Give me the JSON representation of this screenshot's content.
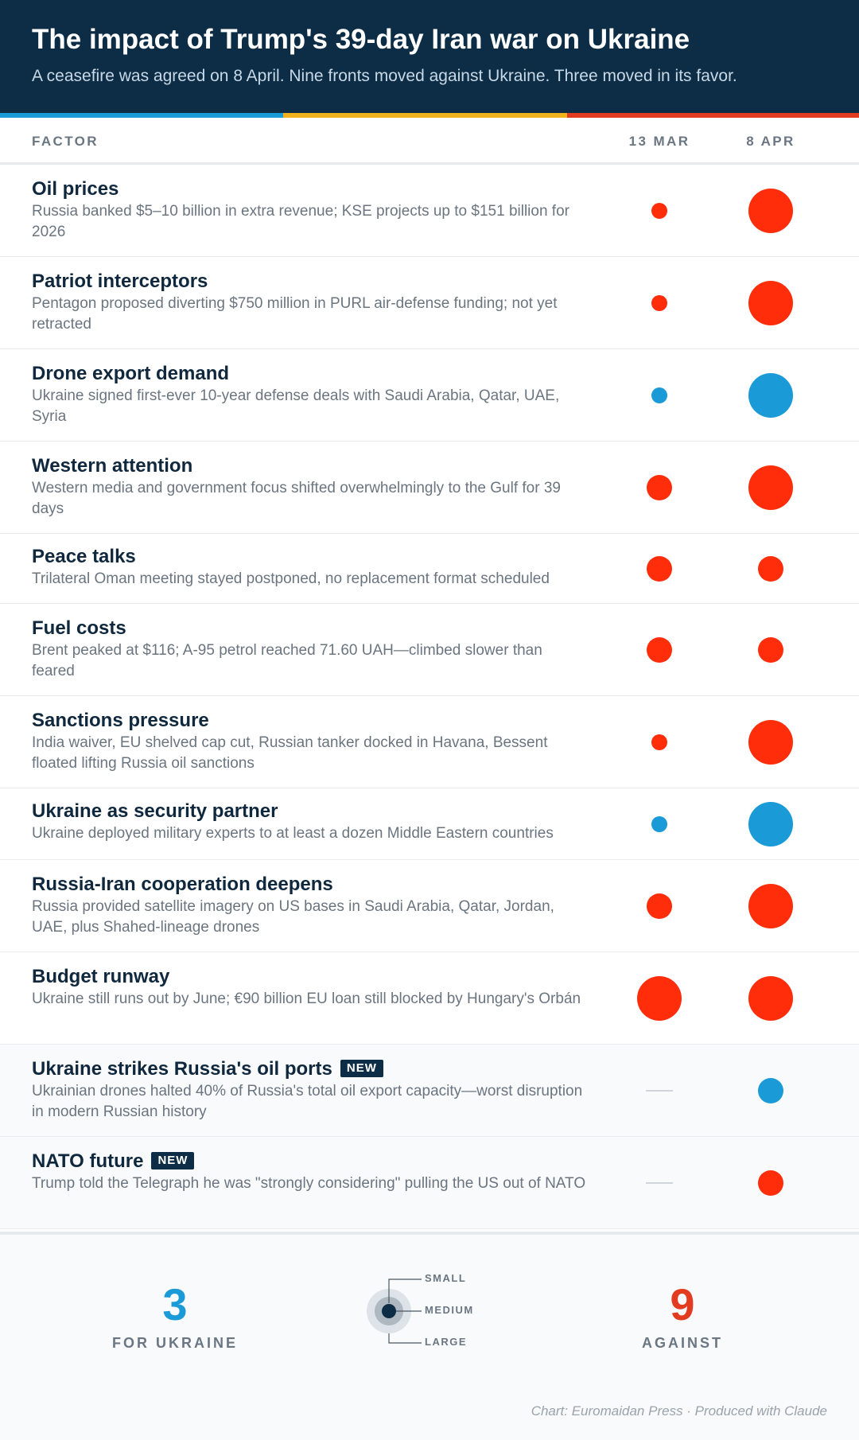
{
  "header": {
    "title": "The impact of Trump's 39-day Iran war on Ukraine",
    "subtitle": "A ceasefire was agreed on 8 April. Nine fronts moved against Ukraine. Three moved in its favor."
  },
  "columns": {
    "factor": "FACTOR",
    "date1": "13 MAR",
    "date2": "8 APR"
  },
  "colors": {
    "for_ukraine": "#1a9bd7",
    "against": "#ff2d0a",
    "header_bg": "#0c2d45",
    "stripe": [
      "#1a9bd7",
      "#f2b21c",
      "#e23b1f"
    ]
  },
  "chart_data": {
    "type": "table",
    "size_scale": [
      "small",
      "medium",
      "large"
    ],
    "rows": [
      {
        "factor": "Oil prices",
        "description": "Russia banked $5–10 billion in extra revenue; KSE projects up to $151 billion for 2026",
        "new": false,
        "mar13": {
          "direction": "against",
          "size": "small"
        },
        "apr8": {
          "direction": "against",
          "size": "large"
        }
      },
      {
        "factor": "Patriot interceptors",
        "description": "Pentagon proposed diverting $750 million in PURL air-defense funding; not yet retracted",
        "new": false,
        "mar13": {
          "direction": "against",
          "size": "small"
        },
        "apr8": {
          "direction": "against",
          "size": "large"
        }
      },
      {
        "factor": "Drone export demand",
        "description": "Ukraine signed first-ever 10-year defense deals with Saudi Arabia, Qatar, UAE, Syria",
        "new": false,
        "mar13": {
          "direction": "for",
          "size": "small"
        },
        "apr8": {
          "direction": "for",
          "size": "large"
        }
      },
      {
        "factor": "Western attention",
        "description": "Western media and government focus shifted overwhelmingly to the Gulf for 39 days",
        "new": false,
        "mar13": {
          "direction": "against",
          "size": "medium"
        },
        "apr8": {
          "direction": "against",
          "size": "large"
        }
      },
      {
        "factor": "Peace talks",
        "description": "Trilateral Oman meeting stayed postponed, no replacement format scheduled",
        "new": false,
        "mar13": {
          "direction": "against",
          "size": "medium"
        },
        "apr8": {
          "direction": "against",
          "size": "medium"
        }
      },
      {
        "factor": "Fuel costs",
        "description": "Brent peaked at $116; A-95 petrol reached 71.60 UAH—climbed slower than feared",
        "new": false,
        "mar13": {
          "direction": "against",
          "size": "medium"
        },
        "apr8": {
          "direction": "against",
          "size": "medium"
        }
      },
      {
        "factor": "Sanctions pressure",
        "description": "India waiver, EU shelved cap cut, Russian tanker docked in Havana, Bessent floated lifting Russia oil sanctions",
        "new": false,
        "mar13": {
          "direction": "against",
          "size": "small"
        },
        "apr8": {
          "direction": "against",
          "size": "large"
        }
      },
      {
        "factor": "Ukraine as security partner",
        "description": "Ukraine deployed military experts to at least a dozen Middle Eastern countries",
        "new": false,
        "mar13": {
          "direction": "for",
          "size": "small"
        },
        "apr8": {
          "direction": "for",
          "size": "large"
        }
      },
      {
        "factor": "Russia-Iran cooperation deepens",
        "description": "Russia provided satellite imagery on US bases in Saudi Arabia, Qatar, Jordan, UAE, plus Shahed-lineage drones",
        "new": false,
        "mar13": {
          "direction": "against",
          "size": "medium"
        },
        "apr8": {
          "direction": "against",
          "size": "large"
        }
      },
      {
        "factor": "Budget runway",
        "description": "Ukraine still runs out by June; €90 billion EU loan still blocked by Hungary's Orbán",
        "new": false,
        "mar13": {
          "direction": "against",
          "size": "large"
        },
        "apr8": {
          "direction": "against",
          "size": "large"
        }
      },
      {
        "factor": "Ukraine strikes Russia's oil ports",
        "description": "Ukrainian drones halted 40% of Russia's total oil export capacity—worst disruption in modern Russian history",
        "new": true,
        "mar13": null,
        "apr8": {
          "direction": "for",
          "size": "medium"
        }
      },
      {
        "factor": "NATO future",
        "description": "Trump told the Telegraph he was \"strongly considering\" pulling the US out of NATO",
        "new": true,
        "mar13": null,
        "apr8": {
          "direction": "against",
          "size": "medium"
        }
      }
    ]
  },
  "badge_label": "NEW",
  "summary": {
    "for_count": "3",
    "for_label": "FOR UKRAINE",
    "against_count": "9",
    "against_label": "AGAINST"
  },
  "legend": {
    "small": "SMALL",
    "medium": "MEDIUM",
    "large": "LARGE"
  },
  "credit": "Chart: Euromaidan Press · Produced with Claude"
}
